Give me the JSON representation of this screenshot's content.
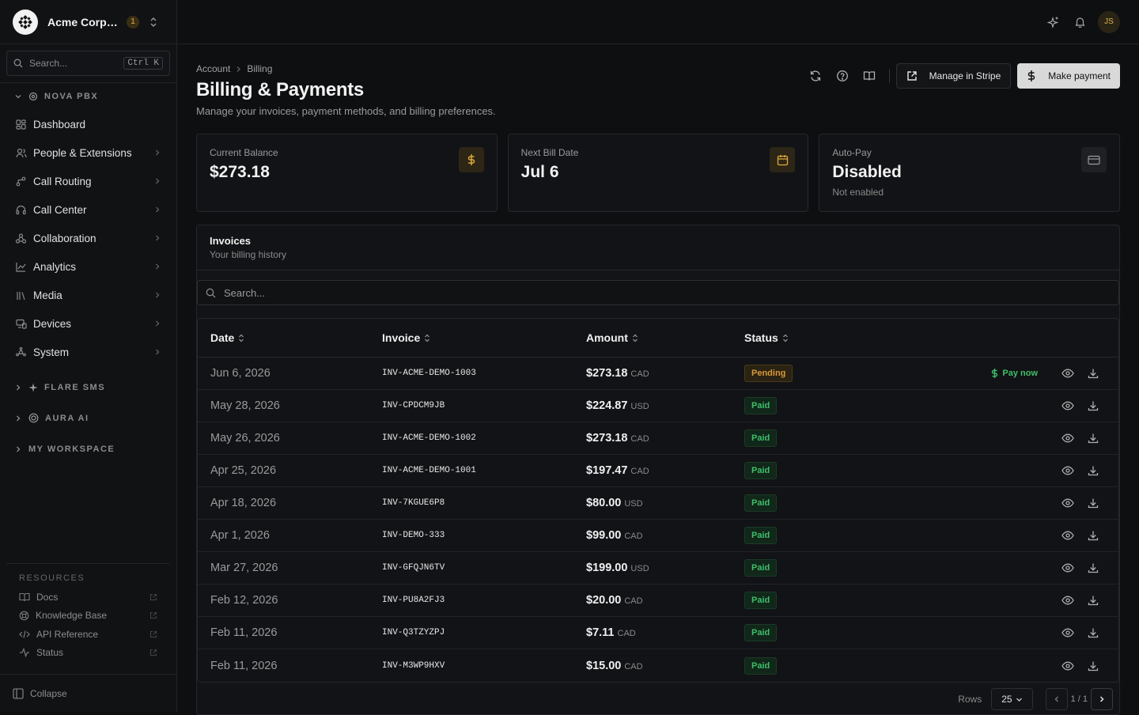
{
  "org": {
    "name": "Acme Corporation",
    "badge": "1"
  },
  "sidebar": {
    "search_placeholder": "Search...",
    "search_kbd": "Ctrl K",
    "sections": [
      {
        "label": "NOVA PBX"
      },
      {
        "label": "FLARE SMS"
      },
      {
        "label": "AURA AI"
      },
      {
        "label": "MY WORKSPACE"
      }
    ],
    "items": [
      {
        "label": "Dashboard"
      },
      {
        "label": "People & Extensions"
      },
      {
        "label": "Call Routing"
      },
      {
        "label": "Call Center"
      },
      {
        "label": "Collaboration"
      },
      {
        "label": "Analytics"
      },
      {
        "label": "Media"
      },
      {
        "label": "Devices"
      },
      {
        "label": "System"
      }
    ],
    "resources_title": "RESOURCES",
    "resources": [
      {
        "label": "Docs"
      },
      {
        "label": "Knowledge Base"
      },
      {
        "label": "API Reference"
      },
      {
        "label": "Status"
      }
    ],
    "collapse_label": "Collapse"
  },
  "topbar": {
    "avatar": "JS"
  },
  "breadcrumb": [
    "Account",
    "Billing"
  ],
  "page": {
    "title": "Billing & Payments",
    "subtitle": "Manage your invoices, payment methods, and billing preferences."
  },
  "actions": {
    "manage_stripe": "Manage in Stripe",
    "make_payment": "Make payment"
  },
  "stats": [
    {
      "label": "Current Balance",
      "value": "$273.18",
      "note": "",
      "icon": "dollar-icon"
    },
    {
      "label": "Next Bill Date",
      "value": "Jul 6",
      "note": "",
      "icon": "calendar-icon"
    },
    {
      "label": "Auto-Pay",
      "value": "Disabled",
      "note": "Not enabled",
      "icon": "credit-card-icon"
    }
  ],
  "invoices": {
    "title": "Invoices",
    "subtitle": "Your billing history",
    "search_placeholder": "Search...",
    "columns": [
      "Date",
      "Invoice",
      "Amount",
      "Status"
    ],
    "pay_now_label": "Pay now",
    "rows": [
      {
        "date": "Jun 6, 2026",
        "invoice": "INV-ACME-DEMO-1003",
        "amount": "$273.18",
        "currency": "CAD",
        "status": "Pending"
      },
      {
        "date": "May 28, 2026",
        "invoice": "INV-CPDCM9JB",
        "amount": "$224.87",
        "currency": "USD",
        "status": "Paid"
      },
      {
        "date": "May 26, 2026",
        "invoice": "INV-ACME-DEMO-1002",
        "amount": "$273.18",
        "currency": "CAD",
        "status": "Paid"
      },
      {
        "date": "Apr 25, 2026",
        "invoice": "INV-ACME-DEMO-1001",
        "amount": "$197.47",
        "currency": "CAD",
        "status": "Paid"
      },
      {
        "date": "Apr 18, 2026",
        "invoice": "INV-7KGUE6P8",
        "amount": "$80.00",
        "currency": "USD",
        "status": "Paid"
      },
      {
        "date": "Apr 1, 2026",
        "invoice": "INV-DEMO-333",
        "amount": "$99.00",
        "currency": "CAD",
        "status": "Paid"
      },
      {
        "date": "Mar 27, 2026",
        "invoice": "INV-GFQJN6TV",
        "amount": "$199.00",
        "currency": "USD",
        "status": "Paid"
      },
      {
        "date": "Feb 12, 2026",
        "invoice": "INV-PU8A2FJ3",
        "amount": "$20.00",
        "currency": "CAD",
        "status": "Paid"
      },
      {
        "date": "Feb 11, 2026",
        "invoice": "INV-Q3TZYZPJ",
        "amount": "$7.11",
        "currency": "CAD",
        "status": "Paid"
      },
      {
        "date": "Feb 11, 2026",
        "invoice": "INV-M3WP9HXV",
        "amount": "$15.00",
        "currency": "CAD",
        "status": "Paid"
      }
    ],
    "pager": {
      "rows_label": "Rows",
      "rows_value": "25",
      "page_text": "1 / 1"
    }
  },
  "colors": {
    "accent_gold": "#e0a83a",
    "paid_green": "#3fbf69",
    "pending_amber": "#d89a3a"
  }
}
